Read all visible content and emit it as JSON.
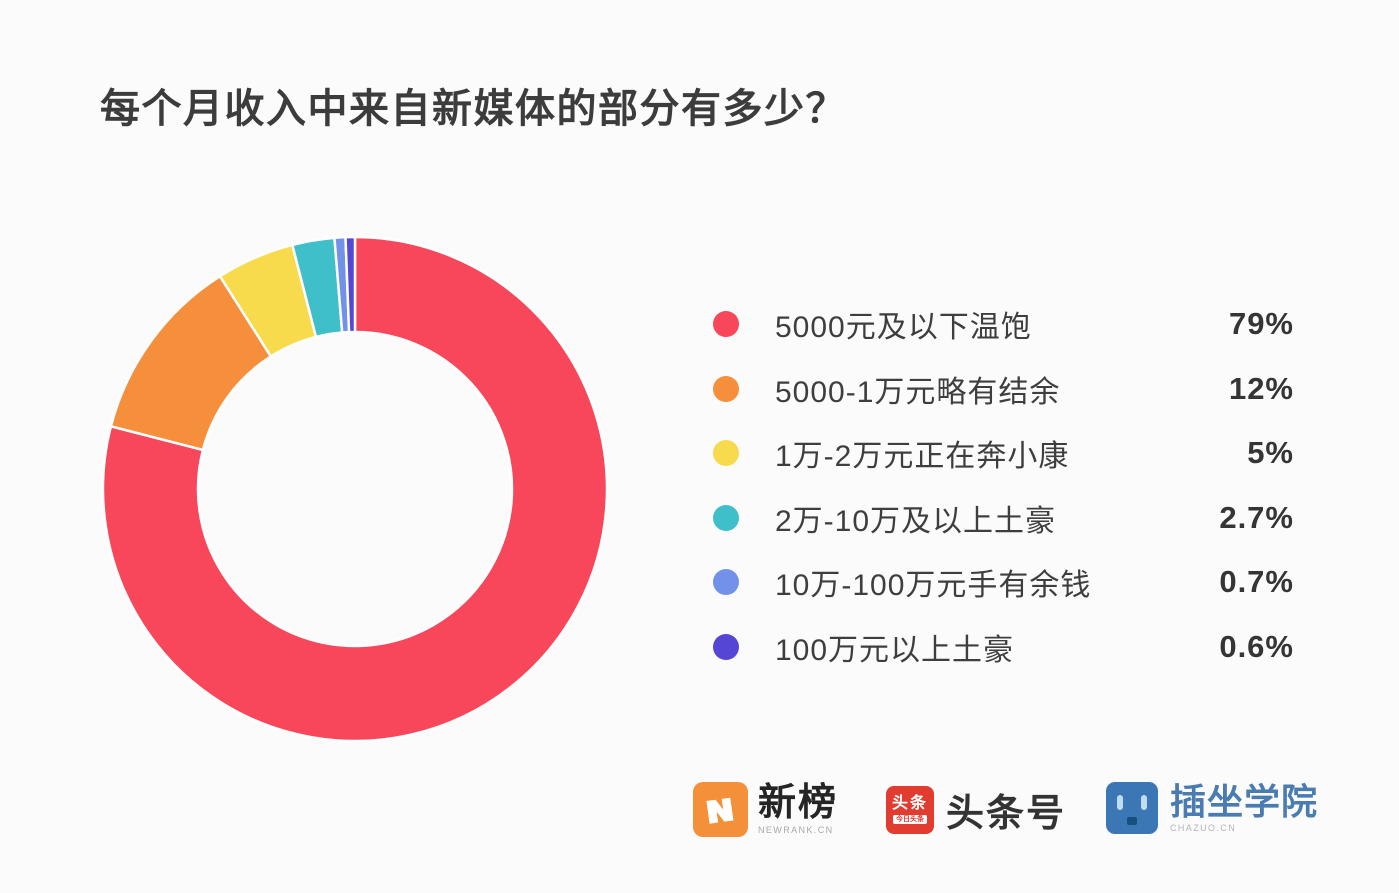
{
  "title": "每个月收入中来自新媒体的部分有多少？",
  "chart_data": {
    "type": "pie",
    "subtype": "donut",
    "title": "每个月收入中来自新媒体的部分有多少？",
    "legend_position": "right",
    "start_angle": "top, clockwise",
    "inner_radius_ratio": 0.62,
    "categories": [
      "5000元及以下温饱",
      "5000-1万元略有结余",
      "1万-2万元正在奔小康",
      "2万-10万及以上土豪",
      "10万-100万元手有余钱",
      "100万元以上土豪"
    ],
    "values": [
      79,
      12,
      5,
      2.7,
      0.7,
      0.6
    ],
    "items": [
      {
        "label": "5000元及以下温饱",
        "value": 79,
        "percent_label": "79%",
        "color": "#F8465A"
      },
      {
        "label": "5000-1万元略有结余",
        "value": 12,
        "percent_label": "12%",
        "color": "#F68F3C"
      },
      {
        "label": "1万-2万元正在奔小康",
        "value": 5,
        "percent_label": "5%",
        "color": "#F7DB4D"
      },
      {
        "label": "2万-10万及以上土豪",
        "value": 2.7,
        "percent_label": "2.7%",
        "color": "#3EBFC9"
      },
      {
        "label": "10万-100万元手有余钱",
        "value": 0.7,
        "percent_label": "0.7%",
        "color": "#7291E9"
      },
      {
        "label": "100万元以上土豪",
        "value": 0.6,
        "percent_label": "0.6%",
        "color": "#5546D6"
      }
    ]
  },
  "footer": {
    "newrank": {
      "name": "新榜",
      "subtext": "NEWRANK.CN",
      "icon_bg": "#F5903A"
    },
    "toutiao": {
      "icon_text": "头条",
      "icon_subtext": "今日头条",
      "name": "头条号",
      "icon_bg": "#E23B30"
    },
    "chazuo": {
      "name": "插坐学院",
      "subtext": "CHAZUO.CN",
      "icon_bg": "#3B77B5"
    }
  }
}
